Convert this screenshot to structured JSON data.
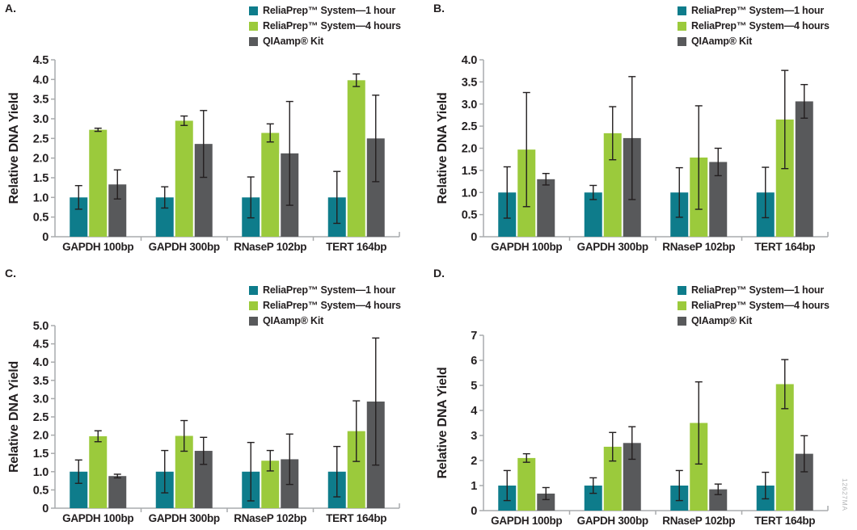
{
  "figure": {
    "watermark": "12627MA"
  },
  "legend": {
    "position": "top-right",
    "items": [
      {
        "label": "ReliaPrep™ System—1 hour",
        "color": "#0e7c8b"
      },
      {
        "label": "ReliaPrep™ System—4 hours",
        "color": "#9bca3c"
      },
      {
        "label": "QIAamp® Kit",
        "color": "#58595b"
      }
    ]
  },
  "chart_data": [
    {
      "panel": "A.",
      "type": "bar",
      "ylabel": "Relative DNA Yield",
      "categories": [
        "GAPDH 100bp",
        "GAPDH 300bp",
        "RNaseP 102bp",
        "TERT 164bp"
      ],
      "ylim": [
        0,
        4.5
      ],
      "ytick_step": 0.5,
      "grid": false,
      "legend_position": "top-right",
      "series": [
        {
          "name": "ReliaPrep™ System—1 hour",
          "values": [
            1.0,
            1.0,
            1.0,
            1.0
          ],
          "errors": [
            0.3,
            0.27,
            0.52,
            0.66
          ]
        },
        {
          "name": "ReliaPrep™ System—4 hours",
          "values": [
            2.72,
            2.95,
            2.64,
            3.98
          ],
          "errors": [
            0.04,
            0.12,
            0.23,
            0.16
          ]
        },
        {
          "name": "QIAamp® Kit",
          "values": [
            1.33,
            2.36,
            2.12,
            2.5
          ],
          "errors": [
            0.37,
            0.85,
            1.32,
            1.1
          ]
        }
      ]
    },
    {
      "panel": "B.",
      "type": "bar",
      "ylabel": "Relative DNA Yield",
      "categories": [
        "GAPDH 100bp",
        "GAPDH 300bp",
        "RNaseP 102bp",
        "TERT 164bp"
      ],
      "ylim": [
        0,
        4.0
      ],
      "ytick_step": 0.5,
      "grid": false,
      "legend_position": "top-right",
      "series": [
        {
          "name": "ReliaPrep™ System—1 hour",
          "values": [
            1.0,
            1.0,
            1.0,
            1.0
          ],
          "errors": [
            0.58,
            0.16,
            0.56,
            0.57
          ]
        },
        {
          "name": "ReliaPrep™ System—4 hours",
          "values": [
            1.97,
            2.34,
            1.79,
            2.65
          ],
          "errors": [
            1.29,
            0.6,
            1.17,
            1.11
          ]
        },
        {
          "name": "QIAamp® Kit",
          "values": [
            1.3,
            2.23,
            1.69,
            3.06
          ],
          "errors": [
            0.13,
            1.39,
            0.31,
            0.38
          ]
        }
      ]
    },
    {
      "panel": "C.",
      "type": "bar",
      "ylabel": "Relative DNA Yield",
      "categories": [
        "GAPDH 100bp",
        "GAPDH 300bp",
        "RNaseP 102bp",
        "TERT 164bp"
      ],
      "ylim": [
        0,
        5.0
      ],
      "ytick_step": 0.5,
      "grid": false,
      "legend_position": "top-right",
      "series": [
        {
          "name": "ReliaPrep™ System—1 hour",
          "values": [
            1.0,
            1.0,
            1.0,
            1.0
          ],
          "errors": [
            0.32,
            0.58,
            0.8,
            0.69
          ]
        },
        {
          "name": "ReliaPrep™ System—4 hours",
          "values": [
            1.97,
            1.98,
            1.3,
            2.11
          ],
          "errors": [
            0.15,
            0.42,
            0.28,
            0.83
          ]
        },
        {
          "name": "QIAamp® Kit",
          "values": [
            0.88,
            1.57,
            1.34,
            2.92
          ],
          "errors": [
            0.05,
            0.37,
            0.69,
            1.74
          ]
        }
      ]
    },
    {
      "panel": "D.",
      "type": "bar",
      "ylabel": "Relative DNA Yield",
      "categories": [
        "GAPDH 100bp",
        "GAPDH 300bp",
        "RNaseP 102bp",
        "TERT 164bp"
      ],
      "ylim": [
        0,
        7
      ],
      "ytick_step": 1,
      "grid": false,
      "legend_position": "top-right",
      "series": [
        {
          "name": "ReliaPrep™ System—1 hour",
          "values": [
            1.0,
            1.0,
            1.0,
            1.0
          ],
          "errors": [
            0.6,
            0.31,
            0.6,
            0.53
          ]
        },
        {
          "name": "ReliaPrep™ System—4 hours",
          "values": [
            2.1,
            2.55,
            3.5,
            5.05
          ],
          "errors": [
            0.17,
            0.57,
            1.64,
            0.98
          ]
        },
        {
          "name": "QIAamp® Kit",
          "values": [
            0.68,
            2.7,
            0.85,
            2.27
          ],
          "errors": [
            0.24,
            0.65,
            0.21,
            0.72
          ]
        }
      ]
    }
  ]
}
